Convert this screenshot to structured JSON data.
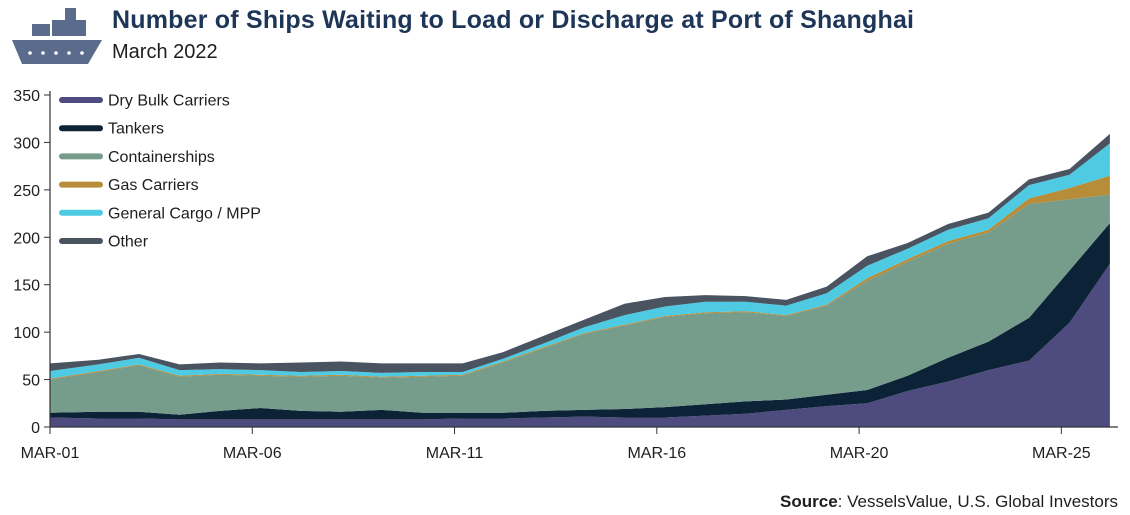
{
  "header": {
    "title": "Number of Ships Waiting to Load or Discharge at Port of Shanghai",
    "subtitle": "March 2022"
  },
  "source": {
    "label": "Source",
    "text": ": VesselsValue, U.S. Global Investors"
  },
  "logo": {
    "icon": "ship-icon",
    "color": "#5b6b8c"
  },
  "chart_data": {
    "type": "area",
    "stacked": true,
    "title": "Number of Ships Waiting to Load or Discharge at Port of Shanghai",
    "subtitle": "March 2022",
    "xlabel": "",
    "ylabel": "",
    "xlim": [
      1,
      27.4
    ],
    "ylim": [
      0,
      350
    ],
    "yticks": [
      0,
      50,
      100,
      150,
      200,
      250,
      300,
      350
    ],
    "ytick_labels": [
      "0",
      "50",
      "100",
      "150",
      "200",
      "250",
      "300",
      "350"
    ],
    "xticks": [
      1,
      6,
      11,
      16,
      21,
      26
    ],
    "xtick_labels": [
      "MAR-01",
      "MAR-06",
      "MAR-11",
      "MAR-16",
      "MAR-20",
      "MAR-25"
    ],
    "legend_position": "top-left",
    "grid": false,
    "x": [
      1,
      2.2,
      3.2,
      4.2,
      5.2,
      6.2,
      7.2,
      8.2,
      9.2,
      10.2,
      11.2,
      12.2,
      13.2,
      14.2,
      15.2,
      16.2,
      17.2,
      18.2,
      19.2,
      20.2,
      21.2,
      22.2,
      23.2,
      24.2,
      25.2,
      26.2,
      27.2
    ],
    "series": [
      {
        "name": "Dry Bulk Carriers",
        "color": "#4e4b7e",
        "values": [
          10,
          9,
          9,
          8,
          8,
          8,
          8,
          8,
          8,
          8,
          9,
          9,
          10,
          11,
          10,
          10,
          12,
          14,
          18,
          22,
          25,
          38,
          48,
          60,
          70,
          110,
          172
        ]
      },
      {
        "name": "Tankers",
        "color": "#0c2237",
        "values": [
          5,
          7,
          7,
          5,
          9,
          12,
          9,
          8,
          10,
          7,
          6,
          6,
          7,
          7,
          9,
          11,
          12,
          13,
          11,
          12,
          14,
          16,
          25,
          30,
          45,
          55,
          43
        ]
      },
      {
        "name": "Containerships",
        "color": "#769c8b",
        "values": [
          35,
          42,
          49,
          40,
          38,
          34,
          36,
          38,
          34,
          38,
          39,
          53,
          66,
          80,
          88,
          95,
          96,
          94,
          88,
          94,
          115,
          120,
          120,
          115,
          120,
          75,
          30
        ]
      },
      {
        "name": "Gas Carriers",
        "color": "#b88d3a",
        "values": [
          1,
          1,
          1,
          1,
          1,
          1,
          1,
          1,
          1,
          1,
          1,
          1,
          1,
          1,
          1,
          1,
          1,
          1,
          1,
          1,
          3,
          3,
          3,
          3,
          6,
          12,
          20
        ]
      },
      {
        "name": "General Cargo / MPP",
        "color": "#4ecbe3",
        "values": [
          8,
          7,
          7,
          6,
          5,
          5,
          4,
          4,
          4,
          4,
          3,
          3,
          4,
          6,
          10,
          10,
          11,
          10,
          10,
          12,
          13,
          11,
          12,
          12,
          14,
          14,
          34
        ]
      },
      {
        "name": "Other",
        "color": "#4a5360",
        "values": [
          8,
          5,
          4,
          6,
          7,
          7,
          10,
          10,
          10,
          9,
          9,
          7,
          8,
          8,
          12,
          10,
          7,
          6,
          6,
          7,
          10,
          6,
          6,
          6,
          6,
          6,
          10
        ]
      }
    ]
  }
}
